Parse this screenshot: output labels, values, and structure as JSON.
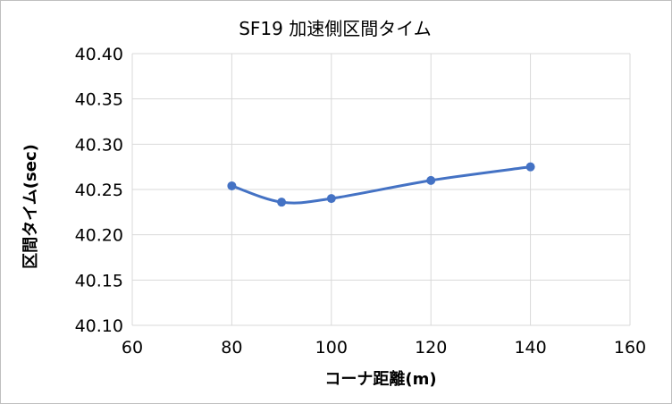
{
  "chart_data": {
    "type": "line",
    "title": "SF19 加速側区間タイム",
    "xlabel": "コーナ距離(m)",
    "ylabel": "区間タイム(sec)",
    "xlim": [
      60,
      160
    ],
    "ylim": [
      40.1,
      40.4
    ],
    "x_ticks": [
      "60",
      "80",
      "100",
      "120",
      "140",
      "160"
    ],
    "y_ticks": [
      "40.40",
      "40.35",
      "40.30",
      "40.25",
      "40.20",
      "40.15",
      "40.10"
    ],
    "grid": true,
    "smooth": true,
    "series": [
      {
        "x": [
          80,
          90,
          100,
          120,
          140
        ],
        "values": [
          40.254,
          40.236,
          40.24,
          40.26,
          40.275
        ],
        "color": "#4472c4"
      }
    ]
  }
}
